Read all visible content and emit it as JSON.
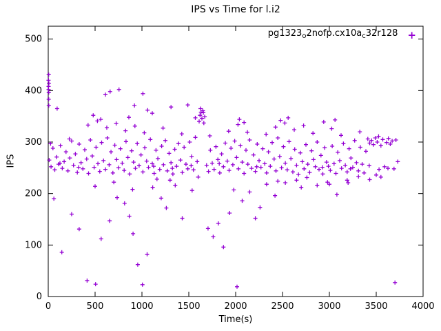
{
  "chart": {
    "title": "IPS vs Time for l.i2",
    "xlabel": "Time(s)",
    "ylabel": "IPS",
    "legend": {
      "p1": "pg1323",
      "p2": "o",
      "p3": "2nofp.cx10a",
      "p4": "c",
      "p5": "32r128",
      "marker": "+"
    }
  },
  "chart_data": {
    "type": "scatter",
    "title": "IPS vs Time for l.i2",
    "xlabel": "Time(s)",
    "ylabel": "IPS",
    "series_name": "pg1323_o2nofp.cx10a_c32r128",
    "marker": "plus",
    "color": "#9400d3",
    "xlim": [
      0,
      4000
    ],
    "ylim": [
      0,
      525
    ],
    "xticks": [
      0,
      500,
      1000,
      1500,
      2000,
      2500,
      3000,
      3500,
      4000
    ],
    "yticks": [
      0,
      100,
      200,
      300,
      400,
      500
    ],
    "grid": false,
    "legend_position": "top-right-inside",
    "points": [
      [
        3,
        420
      ],
      [
        4,
        408
      ],
      [
        5,
        431
      ],
      [
        6,
        396
      ],
      [
        7,
        414
      ],
      [
        5,
        383
      ],
      [
        6,
        371
      ],
      [
        4,
        402
      ],
      [
        10,
        265
      ],
      [
        30,
        252
      ],
      [
        50,
        288
      ],
      [
        70,
        246
      ],
      [
        90,
        271
      ],
      [
        110,
        257
      ],
      [
        130,
        293
      ],
      [
        150,
        249
      ],
      [
        170,
        262
      ],
      [
        190,
        281
      ],
      [
        210,
        244
      ],
      [
        230,
        269
      ],
      [
        250,
        302
      ],
      [
        270,
        255
      ],
      [
        290,
        277
      ],
      [
        310,
        241
      ],
      [
        330,
        296
      ],
      [
        350,
        260
      ],
      [
        370,
        248
      ],
      [
        390,
        285
      ],
      [
        410,
        267
      ],
      [
        430,
        239
      ],
      [
        450,
        304
      ],
      [
        470,
        273
      ],
      [
        490,
        251
      ],
      [
        510,
        290
      ],
      [
        530,
        258
      ],
      [
        550,
        243
      ],
      [
        570,
        299
      ],
      [
        590,
        264
      ],
      [
        610,
        247
      ],
      [
        630,
        308
      ],
      [
        650,
        256
      ],
      [
        670,
        281
      ],
      [
        690,
        240
      ],
      [
        710,
        294
      ],
      [
        730,
        266
      ],
      [
        750,
        250
      ],
      [
        770,
        287
      ],
      [
        790,
        259
      ],
      [
        810,
        245
      ],
      [
        830,
        301
      ],
      [
        850,
        270
      ],
      [
        870,
        238
      ],
      [
        890,
        283
      ],
      [
        910,
        261
      ],
      [
        930,
        249
      ],
      [
        950,
        297
      ],
      [
        970,
        254
      ],
      [
        990,
        275
      ],
      [
        1010,
        242
      ],
      [
        1030,
        289
      ],
      [
        1050,
        263
      ],
      [
        1070,
        251
      ],
      [
        1090,
        305
      ],
      [
        1110,
        258
      ],
      [
        1130,
        239
      ],
      [
        1150,
        284
      ],
      [
        1170,
        268
      ],
      [
        1190,
        247
      ],
      [
        1210,
        292
      ],
      [
        1230,
        256
      ],
      [
        1250,
        303
      ],
      [
        1270,
        244
      ],
      [
        1290,
        278
      ],
      [
        1310,
        260
      ],
      [
        1330,
        238
      ],
      [
        1350,
        286
      ],
      [
        1370,
        253
      ],
      [
        1390,
        297
      ],
      [
        1410,
        265
      ],
      [
        1430,
        241
      ],
      [
        1450,
        290
      ],
      [
        1470,
        257
      ],
      [
        1490,
        248
      ],
      [
        1510,
        300
      ],
      [
        1530,
        272
      ],
      [
        1550,
        246
      ],
      [
        1570,
        309
      ],
      [
        1590,
        262
      ],
      [
        1610,
        340
      ],
      [
        1620,
        352
      ],
      [
        1630,
        358
      ],
      [
        1640,
        346
      ],
      [
        1650,
        361
      ],
      [
        1660,
        337
      ],
      [
        1670,
        349
      ],
      [
        1690,
        255
      ],
      [
        1710,
        243
      ],
      [
        1730,
        284
      ],
      [
        1750,
        259
      ],
      [
        1770,
        247
      ],
      [
        1790,
        291
      ],
      [
        1810,
        266
      ],
      [
        1830,
        240
      ],
      [
        1850,
        277
      ],
      [
        1870,
        252
      ],
      [
        1890,
        298
      ],
      [
        1910,
        263
      ],
      [
        1930,
        245
      ],
      [
        1950,
        288
      ],
      [
        1970,
        256
      ],
      [
        1990,
        302
      ],
      [
        2010,
        270
      ],
      [
        2030,
        248
      ],
      [
        2050,
        293
      ],
      [
        2070,
        261
      ],
      [
        2090,
        239
      ],
      [
        2110,
        284
      ],
      [
        2130,
        257
      ],
      [
        2150,
        304
      ],
      [
        2170,
        249
      ],
      [
        2190,
        275
      ],
      [
        2210,
        243
      ],
      [
        2230,
        296
      ],
      [
        2250,
        264
      ],
      [
        2270,
        251
      ],
      [
        2290,
        287
      ],
      [
        2310,
        258
      ],
      [
        2330,
        240
      ],
      [
        2350,
        281
      ],
      [
        2370,
        253
      ],
      [
        2390,
        299
      ],
      [
        2410,
        267
      ],
      [
        2430,
        244
      ],
      [
        2450,
        308
      ],
      [
        2470,
        272
      ],
      [
        2490,
        250
      ],
      [
        2510,
        291
      ],
      [
        2530,
        259
      ],
      [
        2550,
        246
      ],
      [
        2570,
        301
      ],
      [
        2590,
        268
      ],
      [
        2610,
        242
      ],
      [
        2630,
        286
      ],
      [
        2650,
        255
      ],
      [
        2670,
        237
      ],
      [
        2690,
        279
      ],
      [
        2710,
        262
      ],
      [
        2730,
        248
      ],
      [
        2750,
        295
      ],
      [
        2770,
        257
      ],
      [
        2790,
        241
      ],
      [
        2810,
        283
      ],
      [
        2830,
        266
      ],
      [
        2850,
        252
      ],
      [
        2870,
        300
      ],
      [
        2890,
        247
      ],
      [
        2910,
        274
      ],
      [
        2930,
        238
      ],
      [
        2950,
        289
      ],
      [
        2970,
        261
      ],
      [
        2990,
        253
      ],
      [
        3010,
        245
      ],
      [
        3030,
        292
      ],
      [
        3050,
        258
      ],
      [
        3070,
        239
      ],
      [
        3090,
        280
      ],
      [
        3110,
        264
      ],
      [
        3130,
        249
      ],
      [
        3150,
        297
      ],
      [
        3170,
        255
      ],
      [
        3190,
        242
      ],
      [
        3210,
        287
      ],
      [
        3230,
        269
      ],
      [
        3250,
        251
      ],
      [
        3270,
        303
      ],
      [
        3290,
        260
      ],
      [
        3310,
        244
      ],
      [
        3330,
        290
      ],
      [
        3350,
        257
      ],
      [
        3370,
        240
      ],
      [
        3390,
        282
      ],
      [
        3410,
        306
      ],
      [
        3430,
        298
      ],
      [
        3450,
        303
      ],
      [
        3470,
        295
      ],
      [
        3490,
        308
      ],
      [
        3510,
        300
      ],
      [
        3530,
        247
      ],
      [
        3550,
        293
      ],
      [
        3570,
        305
      ],
      [
        3590,
        252
      ],
      [
        3610,
        299
      ],
      [
        3630,
        307
      ],
      [
        3650,
        296
      ],
      [
        3670,
        302
      ],
      [
        3690,
        248
      ],
      [
        3710,
        304
      ],
      [
        3730,
        262
      ],
      [
        25,
        297
      ],
      [
        125,
        259
      ],
      [
        225,
        306
      ],
      [
        325,
        251
      ],
      [
        425,
        333
      ],
      [
        525,
        341
      ],
      [
        625,
        328
      ],
      [
        725,
        336
      ],
      [
        825,
        322
      ],
      [
        925,
        331
      ],
      [
        1025,
        318
      ],
      [
        1125,
        253
      ],
      [
        1225,
        327
      ],
      [
        1325,
        249
      ],
      [
        1425,
        316
      ],
      [
        1525,
        254
      ],
      [
        1625,
        365
      ],
      [
        1725,
        312
      ],
      [
        1825,
        258
      ],
      [
        1925,
        321
      ],
      [
        2025,
        334
      ],
      [
        2125,
        319
      ],
      [
        2225,
        252
      ],
      [
        2325,
        315
      ],
      [
        2425,
        329
      ],
      [
        2525,
        337
      ],
      [
        2625,
        324
      ],
      [
        2725,
        332
      ],
      [
        2825,
        317
      ],
      [
        2925,
        251
      ],
      [
        3025,
        326
      ],
      [
        3125,
        313
      ],
      [
        3225,
        248
      ],
      [
        3325,
        320
      ],
      [
        3425,
        254
      ],
      [
        3525,
        311
      ],
      [
        3625,
        249
      ],
      [
        95,
        365
      ],
      [
        480,
        352
      ],
      [
        560,
        344
      ],
      [
        610,
        392
      ],
      [
        660,
        398
      ],
      [
        755,
        402
      ],
      [
        860,
        348
      ],
      [
        920,
        371
      ],
      [
        1010,
        394
      ],
      [
        1060,
        362
      ],
      [
        1110,
        356
      ],
      [
        1310,
        368
      ],
      [
        1490,
        372
      ],
      [
        1570,
        347
      ],
      [
        1655,
        357
      ],
      [
        2040,
        344
      ],
      [
        2090,
        338
      ],
      [
        2480,
        342
      ],
      [
        2560,
        347
      ],
      [
        2940,
        339
      ],
      [
        3060,
        343
      ],
      [
        60,
        190
      ],
      [
        145,
        86
      ],
      [
        250,
        160
      ],
      [
        330,
        131
      ],
      [
        415,
        31
      ],
      [
        505,
        24
      ],
      [
        565,
        112
      ],
      [
        655,
        147
      ],
      [
        735,
        192
      ],
      [
        815,
        181
      ],
      [
        865,
        156
      ],
      [
        905,
        122
      ],
      [
        955,
        62
      ],
      [
        1005,
        23
      ],
      [
        1055,
        82
      ],
      [
        1115,
        212
      ],
      [
        1160,
        228
      ],
      [
        1205,
        191
      ],
      [
        1260,
        172
      ],
      [
        1355,
        216
      ],
      [
        1430,
        152
      ],
      [
        1535,
        206
      ],
      [
        1705,
        132
      ],
      [
        1760,
        116
      ],
      [
        1815,
        142
      ],
      [
        1870,
        96
      ],
      [
        1935,
        162
      ],
      [
        1980,
        207
      ],
      [
        2015,
        19
      ],
      [
        2070,
        186
      ],
      [
        2150,
        203
      ],
      [
        2210,
        152
      ],
      [
        2260,
        173
      ],
      [
        2330,
        218
      ],
      [
        2420,
        196
      ],
      [
        2530,
        221
      ],
      [
        2650,
        226
      ],
      [
        2760,
        231
      ],
      [
        2870,
        216
      ],
      [
        2980,
        222
      ],
      [
        3080,
        198
      ],
      [
        3190,
        226
      ],
      [
        3310,
        233
      ],
      [
        3430,
        227
      ],
      [
        3550,
        232
      ],
      [
        3700,
        27
      ],
      [
        700,
        222
      ],
      [
        1600,
        232
      ],
      [
        2450,
        224
      ],
      [
        3000,
        218
      ],
      [
        500,
        214
      ],
      [
        900,
        208
      ],
      [
        1300,
        226
      ],
      [
        2700,
        212
      ],
      [
        3200,
        221
      ],
      [
        3500,
        236
      ]
    ]
  }
}
